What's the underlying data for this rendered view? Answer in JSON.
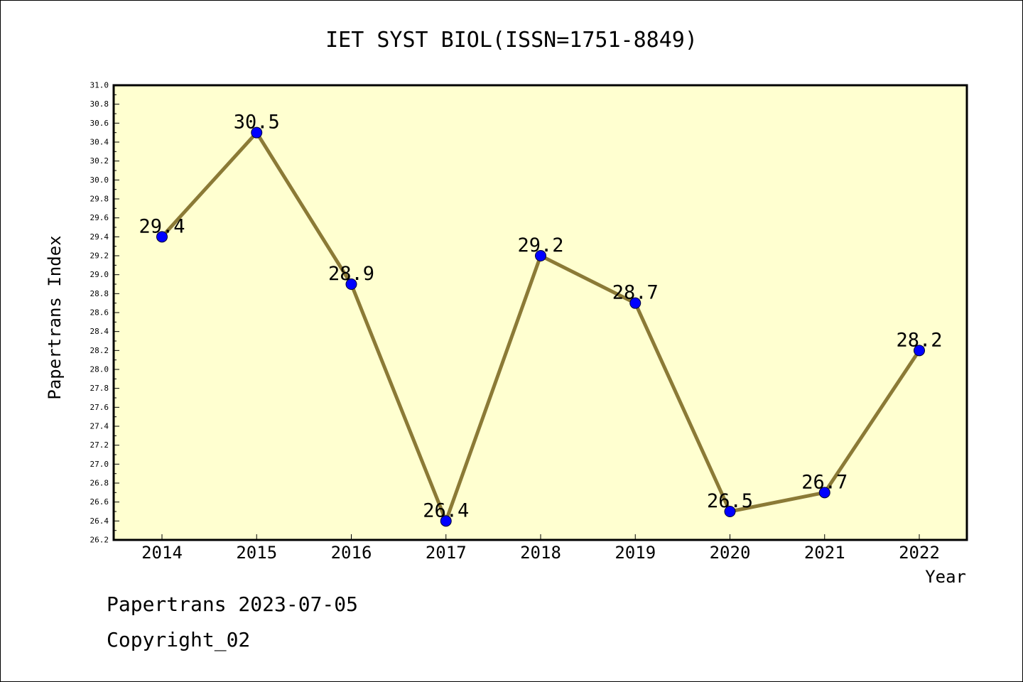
{
  "chart_data": {
    "type": "line",
    "title": "IET SYST BIOL(ISSN=1751-8849)",
    "xlabel": "Year",
    "ylabel": "Papertrans Index",
    "categories": [
      "2014",
      "2015",
      "2016",
      "2017",
      "2018",
      "2019",
      "2020",
      "2021",
      "2022"
    ],
    "values": [
      29.4,
      30.5,
      28.9,
      26.4,
      29.2,
      28.7,
      26.5,
      26.7,
      28.2
    ],
    "data_labels": [
      "29.4",
      "30.5",
      "28.9",
      "26.4",
      "29.2",
      "28.7",
      "26.5",
      "26.7",
      "28.2"
    ],
    "ylim": [
      26.2,
      31.0
    ],
    "y_ticks": [
      "26.2",
      "26.4",
      "26.6",
      "26.8",
      "27.0",
      "27.2",
      "27.4",
      "27.6",
      "27.8",
      "28.0",
      "28.2",
      "28.4",
      "28.6",
      "28.8",
      "29.0",
      "29.2",
      "29.4",
      "29.6",
      "29.8",
      "30.0",
      "30.2",
      "30.4",
      "30.6",
      "30.8",
      "31.0"
    ],
    "grid": false,
    "colors": {
      "plot_background": "#ffffd0",
      "line": "#8b7a36",
      "marker": "#0000ff"
    }
  },
  "footer": {
    "line1": "Papertrans 2023-07-05",
    "line2": "Copyright_02"
  }
}
